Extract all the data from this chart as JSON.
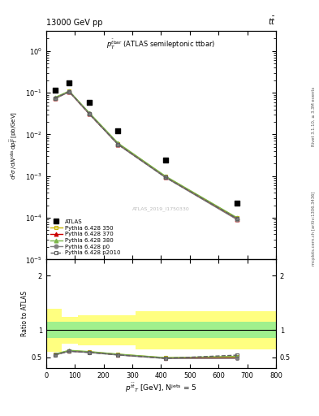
{
  "title_left": "13000 GeV pp",
  "title_right": "tt",
  "panel_title": "p$_T^{\\bar{t}bar}$ (ATLAS semileptonic ttbar)",
  "watermark": "ATLAS_2019_I1750330",
  "rivet_text": "Rivet 3.1.10, ≥ 3.3M events",
  "inspire_text": "mcplots.cern.ch [arXiv:1306.3436]",
  "x_centers": [
    30,
    80,
    150,
    250,
    415,
    665
  ],
  "x_edges": [
    0,
    55,
    110,
    190,
    310,
    520,
    800
  ],
  "atlas_y": [
    0.115,
    0.175,
    0.058,
    0.012,
    0.0024,
    0.00022
  ],
  "pythia_350_y": [
    0.075,
    0.108,
    0.032,
    0.006,
    0.00098,
    9.8e-05
  ],
  "pythia_370_y": [
    0.073,
    0.106,
    0.031,
    0.0058,
    0.00095,
    9.2e-05
  ],
  "pythia_380_y": [
    0.077,
    0.11,
    0.033,
    0.0062,
    0.001,
    0.0001
  ],
  "pythia_p0_y": [
    0.072,
    0.105,
    0.031,
    0.0057,
    0.00093,
    9e-05
  ],
  "pythia_p2010_y": [
    0.073,
    0.107,
    0.031,
    0.0058,
    0.00094,
    9.5e-05
  ],
  "ratio_350": [
    0.555,
    0.62,
    0.6,
    0.555,
    0.49,
    0.51
  ],
  "ratio_370": [
    0.55,
    0.615,
    0.595,
    0.548,
    0.484,
    0.49
  ],
  "ratio_380": [
    0.56,
    0.628,
    0.605,
    0.558,
    0.493,
    0.515
  ],
  "ratio_p0": [
    0.542,
    0.61,
    0.587,
    0.542,
    0.478,
    0.48
  ],
  "ratio_p2010": [
    0.546,
    0.612,
    0.59,
    0.545,
    0.481,
    0.54
  ],
  "band_yellow_lo": [
    0.6,
    0.75,
    0.72,
    0.72,
    0.65,
    0.65
  ],
  "band_yellow_hi": [
    1.4,
    1.25,
    1.28,
    1.28,
    1.35,
    1.35
  ],
  "band_green_lo": 0.85,
  "band_green_hi": 1.15,
  "color_350": "#c8b400",
  "color_370": "#cc0000",
  "color_380": "#7ab648",
  "color_p0": "#808080",
  "color_p2010": "#606060",
  "color_green_band": "#90ee90",
  "color_yellow_band": "#ffff80",
  "ylim_main": [
    1e-05,
    3.0
  ],
  "ylim_ratio": [
    0.3,
    2.3
  ],
  "xlim": [
    0,
    800
  ]
}
